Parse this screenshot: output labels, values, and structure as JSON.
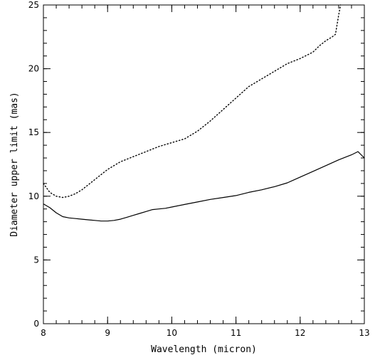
{
  "chart_data": {
    "type": "line",
    "title": "",
    "xlabel": "Wavelength (micron)",
    "ylabel": "Diameter upper limit (mas)",
    "xlim": [
      8,
      13
    ],
    "ylim": [
      0,
      25
    ],
    "x_ticks": [
      "8",
      "9",
      "10",
      "11",
      "12",
      "13"
    ],
    "y_ticks": [
      "0",
      "5",
      "10",
      "15",
      "20",
      "25"
    ],
    "x_tick_values": [
      8,
      9,
      10,
      11,
      12,
      13
    ],
    "y_tick_values": [
      0,
      5,
      10,
      15,
      20,
      25
    ],
    "x_minor_step": 0.2,
    "y_minor_step": 1,
    "grid": false,
    "legend": "none",
    "series": [
      {
        "style": "solid",
        "color": "#000000",
        "x": [
          8.0,
          8.1,
          8.2,
          8.3,
          8.4,
          8.5,
          8.6,
          8.7,
          8.8,
          8.9,
          9.0,
          9.1,
          9.2,
          9.3,
          9.4,
          9.5,
          9.6,
          9.7,
          9.8,
          9.9,
          10.0,
          10.2,
          10.4,
          10.6,
          10.8,
          11.0,
          11.2,
          11.4,
          11.6,
          11.8,
          12.0,
          12.2,
          12.4,
          12.6,
          12.8,
          12.9,
          13.0
        ],
        "y": [
          9.4,
          9.1,
          8.7,
          8.4,
          8.3,
          8.25,
          8.2,
          8.15,
          8.1,
          8.05,
          8.05,
          8.1,
          8.2,
          8.35,
          8.5,
          8.65,
          8.8,
          8.95,
          9.0,
          9.05,
          9.15,
          9.35,
          9.55,
          9.75,
          9.9,
          10.05,
          10.3,
          10.5,
          10.75,
          11.05,
          11.5,
          11.95,
          12.4,
          12.85,
          13.25,
          13.5,
          13.0
        ]
      },
      {
        "style": "dotted",
        "color": "#000000",
        "x": [
          8.0,
          8.1,
          8.2,
          8.3,
          8.4,
          8.5,
          8.6,
          8.7,
          8.8,
          8.9,
          9.0,
          9.2,
          9.4,
          9.6,
          9.8,
          10.0,
          10.2,
          10.4,
          10.6,
          10.8,
          11.0,
          11.2,
          11.4,
          11.6,
          11.8,
          12.0,
          12.2,
          12.3,
          12.4,
          12.5,
          12.55,
          12.6,
          12.63
        ],
        "y": [
          11.0,
          10.3,
          10.0,
          9.9,
          10.0,
          10.2,
          10.5,
          10.9,
          11.3,
          11.7,
          12.1,
          12.7,
          13.1,
          13.5,
          13.9,
          14.2,
          14.5,
          15.1,
          15.9,
          16.8,
          17.7,
          18.6,
          19.2,
          19.8,
          20.4,
          20.8,
          21.3,
          21.8,
          22.2,
          22.5,
          22.7,
          24.2,
          25.0
        ]
      }
    ]
  }
}
